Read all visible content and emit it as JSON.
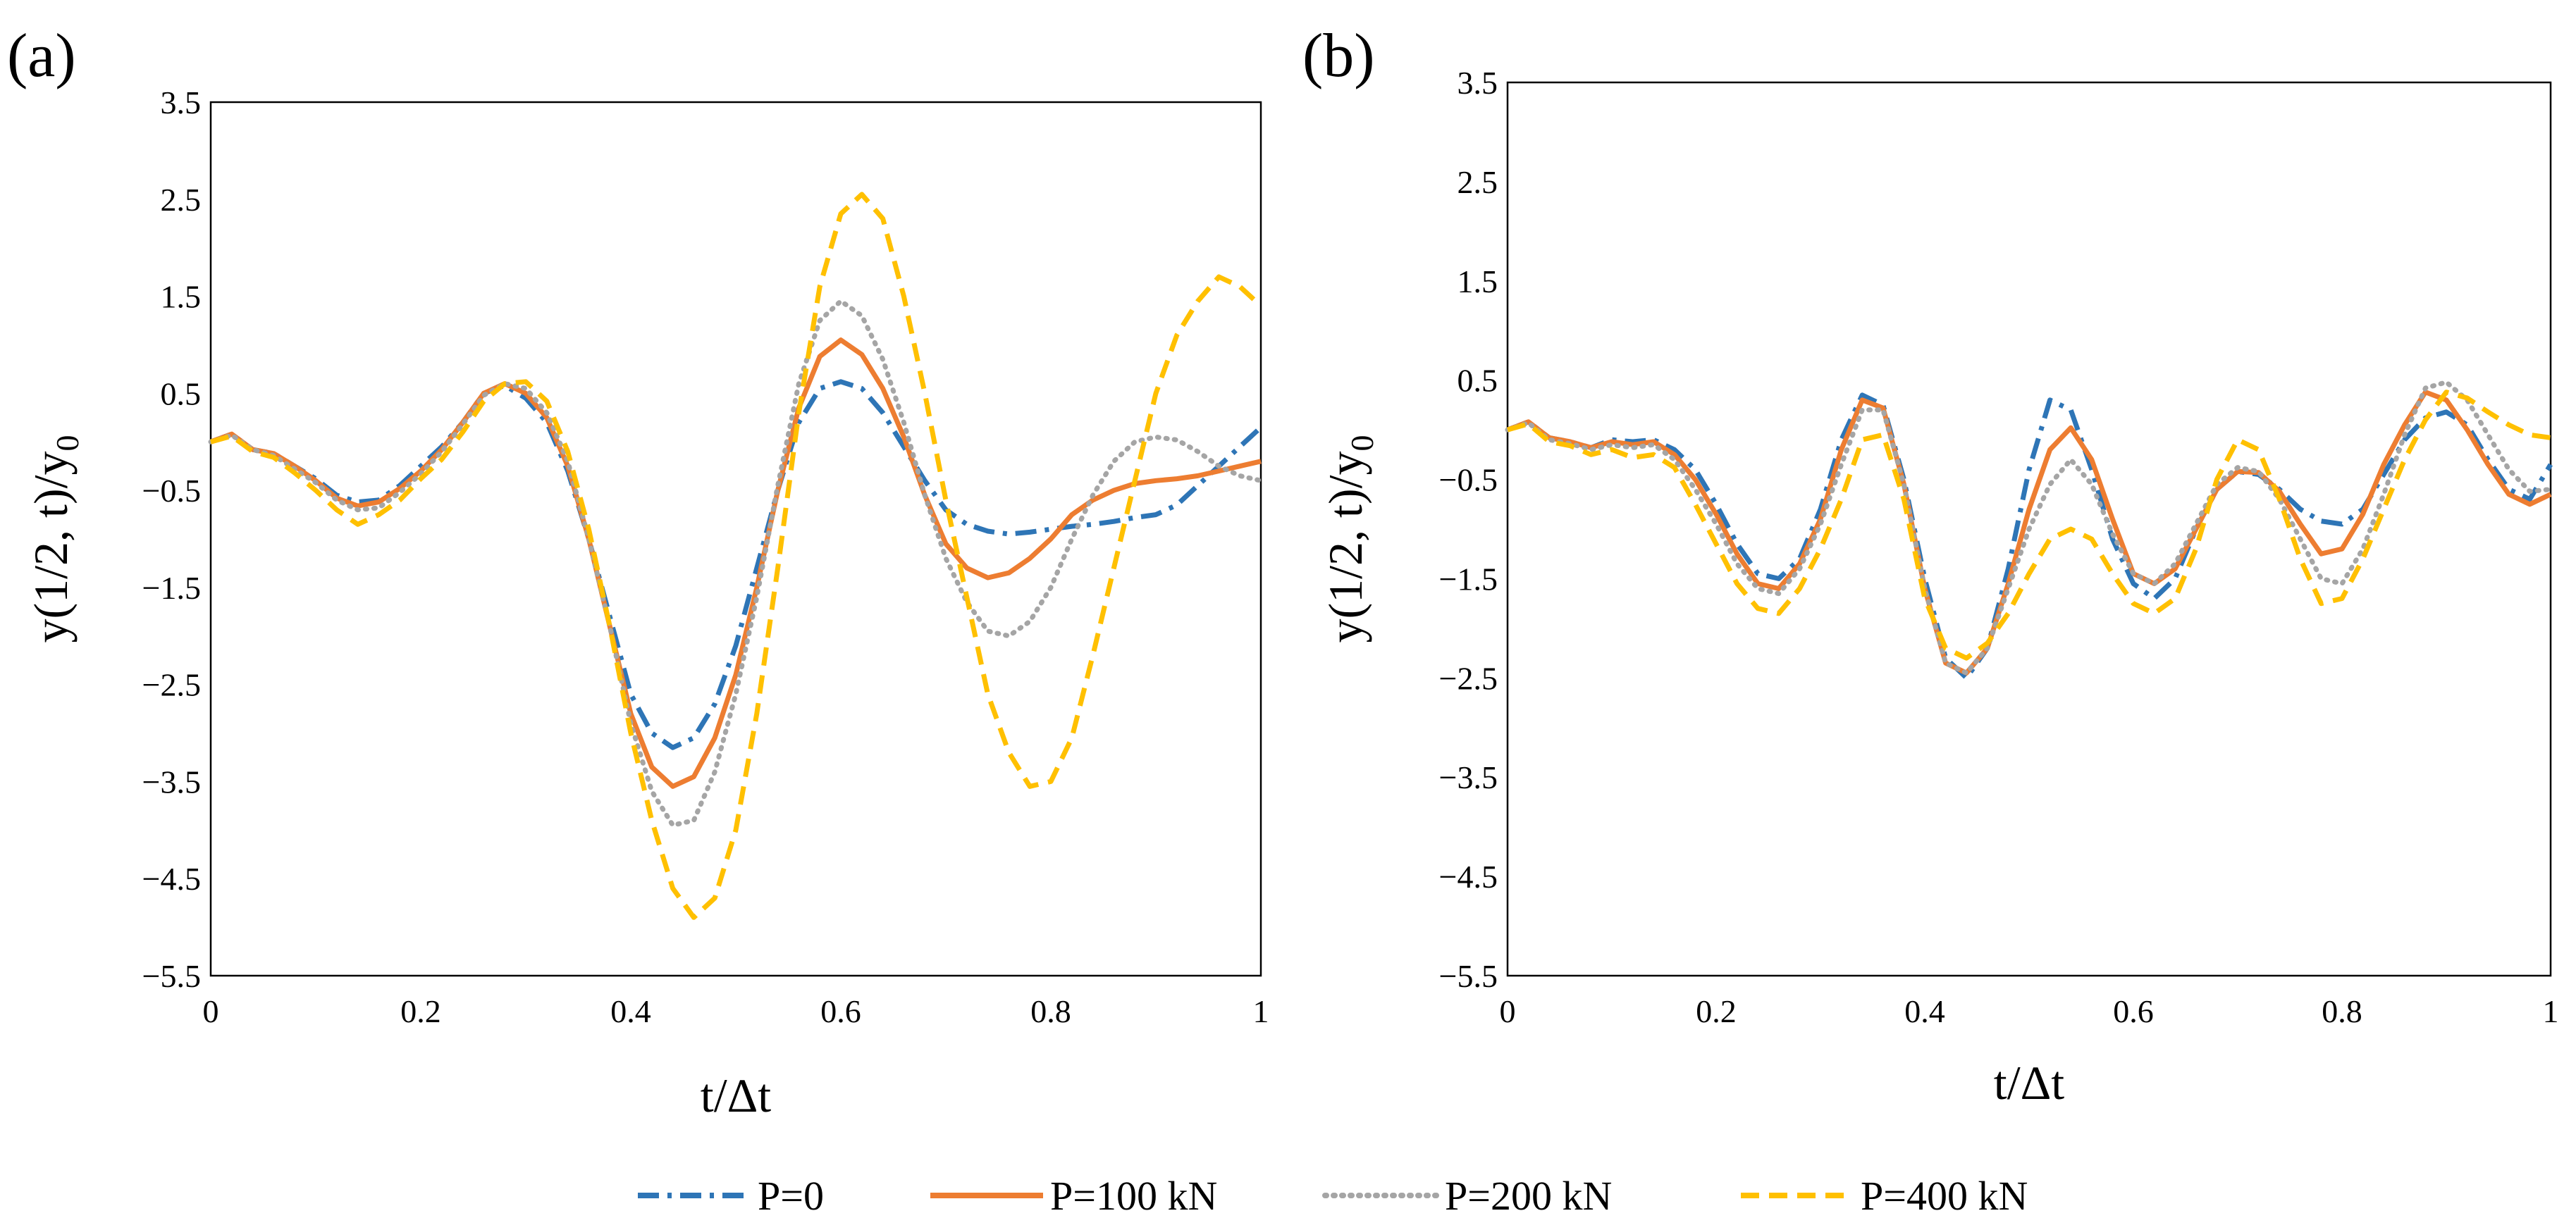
{
  "chart_data": {
    "type": "line",
    "legend": {
      "position": "bottom",
      "entries": [
        "P=0",
        "P=100 kN",
        "P=200 kN",
        "P=400 kN"
      ]
    },
    "styles": [
      {
        "name": "P=0",
        "color": "#2E75B6",
        "dash": "dash-dot"
      },
      {
        "name": "P=100 kN",
        "color": "#ED7D31",
        "dash": "solid"
      },
      {
        "name": "P=200 kN",
        "color": "#A5A5A5",
        "dash": "dotted"
      },
      {
        "name": "P=400 kN",
        "color": "#FFC000",
        "dash": "dashed"
      }
    ],
    "panels": [
      {
        "label": "(a)",
        "xlabel": "t/Δt",
        "ylabel_main": "y(1/2,  t)/y",
        "ylabel_sub": "0",
        "xlim": [
          0,
          1
        ],
        "ylim": [
          -5.5,
          3.5
        ],
        "xticks": [
          "0",
          "0.2",
          "0.4",
          "0.6",
          "0.8",
          "1"
        ],
        "yticks": [
          "3.5",
          "2.5",
          "1.5",
          "0.5",
          "−0.5",
          "−1.5",
          "−2.5",
          "−3.5",
          "−4.5",
          "−5.5"
        ],
        "grid": false,
        "x": [
          0,
          0.02,
          0.04,
          0.06,
          0.08,
          0.1,
          0.12,
          0.14,
          0.16,
          0.18,
          0.2,
          0.22,
          0.24,
          0.26,
          0.28,
          0.3,
          0.32,
          0.34,
          0.36,
          0.38,
          0.4,
          0.42,
          0.44,
          0.46,
          0.48,
          0.5,
          0.52,
          0.54,
          0.56,
          0.58,
          0.6,
          0.62,
          0.64,
          0.66,
          0.68,
          0.7,
          0.72,
          0.74,
          0.76,
          0.78,
          0.8,
          0.82,
          0.84,
          0.86,
          0.88,
          0.9,
          0.92,
          0.94,
          0.96,
          0.98,
          1.0
        ],
        "series": [
          {
            "name": "P=0",
            "values": [
              0.0,
              0.08,
              -0.08,
              -0.12,
              -0.25,
              -0.38,
              -0.55,
              -0.62,
              -0.6,
              -0.45,
              -0.25,
              -0.05,
              0.2,
              0.5,
              0.58,
              0.45,
              0.2,
              -0.3,
              -1.0,
              -1.8,
              -2.6,
              -3.0,
              -3.15,
              -3.05,
              -2.7,
              -2.1,
              -1.3,
              -0.5,
              0.2,
              0.55,
              0.62,
              0.55,
              0.3,
              -0.05,
              -0.4,
              -0.7,
              -0.85,
              -0.92,
              -0.95,
              -0.93,
              -0.9,
              -0.87,
              -0.85,
              -0.82,
              -0.78,
              -0.75,
              -0.65,
              -0.45,
              -0.25,
              -0.05,
              0.15
            ]
          },
          {
            "name": "P=100 kN",
            "values": [
              0.0,
              0.08,
              -0.08,
              -0.12,
              -0.25,
              -0.4,
              -0.58,
              -0.66,
              -0.62,
              -0.48,
              -0.3,
              -0.08,
              0.2,
              0.5,
              0.6,
              0.5,
              0.25,
              -0.25,
              -1.0,
              -1.9,
              -2.8,
              -3.35,
              -3.55,
              -3.45,
              -3.05,
              -2.4,
              -1.5,
              -0.5,
              0.35,
              0.88,
              1.05,
              0.9,
              0.55,
              0.05,
              -0.55,
              -1.05,
              -1.3,
              -1.4,
              -1.35,
              -1.2,
              -1.0,
              -0.75,
              -0.6,
              -0.5,
              -0.43,
              -0.4,
              -0.38,
              -0.35,
              -0.3,
              -0.25,
              -0.2
            ]
          },
          {
            "name": "P=200 kN",
            "values": [
              0.0,
              0.07,
              -0.08,
              -0.14,
              -0.28,
              -0.42,
              -0.6,
              -0.7,
              -0.68,
              -0.52,
              -0.33,
              -0.1,
              0.18,
              0.48,
              0.6,
              0.55,
              0.3,
              -0.2,
              -1.0,
              -1.9,
              -2.9,
              -3.6,
              -3.95,
              -3.9,
              -3.4,
              -2.6,
              -1.6,
              -0.45,
              0.6,
              1.25,
              1.45,
              1.3,
              0.85,
              0.2,
              -0.55,
              -1.2,
              -1.65,
              -1.95,
              -2.0,
              -1.85,
              -1.5,
              -1.0,
              -0.55,
              -0.2,
              0.0,
              0.05,
              0.02,
              -0.1,
              -0.25,
              -0.35,
              -0.4
            ]
          },
          {
            "name": "P=400 kN",
            "values": [
              0.0,
              0.06,
              -0.1,
              -0.16,
              -0.32,
              -0.5,
              -0.7,
              -0.85,
              -0.75,
              -0.6,
              -0.38,
              -0.18,
              0.1,
              0.42,
              0.6,
              0.62,
              0.42,
              -0.1,
              -0.9,
              -1.9,
              -3.0,
              -3.9,
              -4.6,
              -4.9,
              -4.7,
              -4.0,
              -2.8,
              -1.3,
              0.3,
              1.6,
              2.35,
              2.55,
              2.3,
              1.5,
              0.5,
              -0.6,
              -1.6,
              -2.6,
              -3.2,
              -3.55,
              -3.5,
              -3.05,
              -2.2,
              -1.3,
              -0.4,
              0.5,
              1.1,
              1.45,
              1.7,
              1.6,
              1.4
            ]
          }
        ]
      },
      {
        "label": "(b)",
        "xlabel": "t/Δt",
        "ylabel_main": "y(1/2,  t)/y",
        "ylabel_sub": "0",
        "xlim": [
          0,
          1
        ],
        "ylim": [
          -5.5,
          3.5
        ],
        "xticks": [
          "0",
          "0.2",
          "0.4",
          "0.6",
          "0.8",
          "1"
        ],
        "yticks": [
          "3.5",
          "2.5",
          "1.5",
          "0.5",
          "−0.5",
          "−1.5",
          "−2.5",
          "−3.5",
          "−4.5",
          "−5.5"
        ],
        "grid": false,
        "x": [
          0,
          0.02,
          0.04,
          0.06,
          0.08,
          0.1,
          0.12,
          0.14,
          0.16,
          0.18,
          0.2,
          0.22,
          0.24,
          0.26,
          0.28,
          0.3,
          0.32,
          0.34,
          0.36,
          0.38,
          0.4,
          0.42,
          0.44,
          0.46,
          0.48,
          0.5,
          0.52,
          0.54,
          0.56,
          0.58,
          0.6,
          0.62,
          0.64,
          0.66,
          0.68,
          0.7,
          0.72,
          0.74,
          0.76,
          0.78,
          0.8,
          0.82,
          0.84,
          0.86,
          0.88,
          0.9,
          0.92,
          0.94,
          0.96,
          0.98,
          1.0
        ],
        "series": [
          {
            "name": "P=0",
            "values": [
              0.0,
              0.08,
              -0.08,
              -0.12,
              -0.18,
              -0.1,
              -0.12,
              -0.1,
              -0.2,
              -0.4,
              -0.75,
              -1.15,
              -1.45,
              -1.5,
              -1.3,
              -0.8,
              -0.1,
              0.35,
              0.25,
              -0.5,
              -1.5,
              -2.3,
              -2.5,
              -2.2,
              -1.4,
              -0.4,
              0.3,
              0.2,
              -0.4,
              -1.1,
              -1.55,
              -1.7,
              -1.5,
              -1.0,
              -0.6,
              -0.42,
              -0.45,
              -0.6,
              -0.8,
              -0.92,
              -0.95,
              -0.8,
              -0.45,
              -0.1,
              0.12,
              0.18,
              0.05,
              -0.3,
              -0.6,
              -0.7,
              -0.35
            ]
          },
          {
            "name": "P=100 kN",
            "values": [
              0.0,
              0.08,
              -0.08,
              -0.12,
              -0.18,
              -0.12,
              -0.15,
              -0.12,
              -0.25,
              -0.5,
              -0.85,
              -1.25,
              -1.55,
              -1.6,
              -1.35,
              -0.9,
              -0.2,
              0.3,
              0.22,
              -0.55,
              -1.6,
              -2.35,
              -2.45,
              -2.2,
              -1.55,
              -0.8,
              -0.2,
              0.02,
              -0.3,
              -0.9,
              -1.45,
              -1.55,
              -1.4,
              -1.0,
              -0.6,
              -0.42,
              -0.43,
              -0.62,
              -0.95,
              -1.25,
              -1.2,
              -0.85,
              -0.35,
              0.05,
              0.38,
              0.3,
              0.0,
              -0.35,
              -0.65,
              -0.75,
              -0.65
            ]
          },
          {
            "name": "P=200 kN",
            "values": [
              0.0,
              0.07,
              -0.1,
              -0.14,
              -0.2,
              -0.15,
              -0.18,
              -0.15,
              -0.3,
              -0.6,
              -0.95,
              -1.35,
              -1.6,
              -1.65,
              -1.4,
              -0.95,
              -0.35,
              0.2,
              0.2,
              -0.55,
              -1.6,
              -2.35,
              -2.45,
              -2.2,
              -1.6,
              -1.0,
              -0.55,
              -0.3,
              -0.55,
              -1.05,
              -1.45,
              -1.55,
              -1.35,
              -0.95,
              -0.55,
              -0.38,
              -0.42,
              -0.7,
              -1.1,
              -1.5,
              -1.55,
              -1.2,
              -0.65,
              -0.05,
              0.42,
              0.48,
              0.3,
              -0.05,
              -0.4,
              -0.62,
              -0.6
            ]
          },
          {
            "name": "P=400 kN",
            "values": [
              0.0,
              0.06,
              -0.12,
              -0.16,
              -0.25,
              -0.2,
              -0.28,
              -0.25,
              -0.38,
              -0.75,
              -1.15,
              -1.55,
              -1.8,
              -1.85,
              -1.6,
              -1.2,
              -0.7,
              -0.1,
              -0.05,
              -0.7,
              -1.7,
              -2.2,
              -2.3,
              -2.15,
              -1.85,
              -1.45,
              -1.1,
              -1.0,
              -1.1,
              -1.45,
              -1.75,
              -1.85,
              -1.7,
              -1.2,
              -0.5,
              -0.1,
              -0.2,
              -0.7,
              -1.3,
              -1.75,
              -1.7,
              -1.3,
              -0.8,
              -0.3,
              0.1,
              0.38,
              0.32,
              0.18,
              0.05,
              -0.05,
              -0.08
            ]
          }
        ]
      }
    ]
  }
}
